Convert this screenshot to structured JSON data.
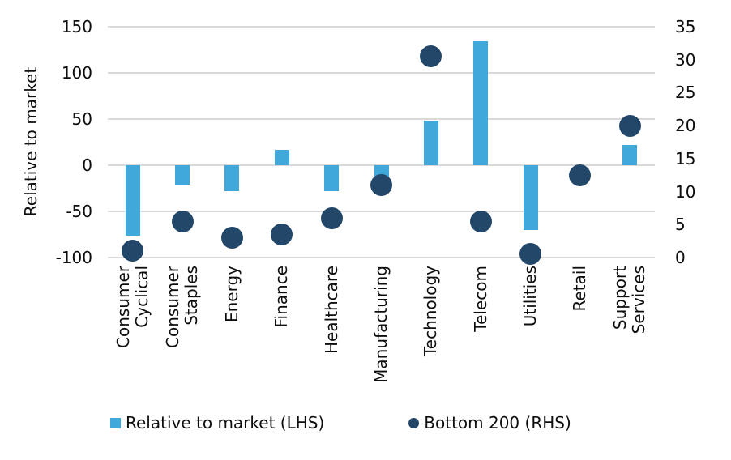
{
  "chart_data": {
    "type": "combo",
    "title": "",
    "categories": [
      "Consumer\nCyclical",
      "Consumer\nStaples",
      "Energy",
      "Finance",
      "Healthcare",
      "Manufacturing",
      "Technology",
      "Telecom",
      "Utilities",
      "Retail",
      "Support\nServices"
    ],
    "series": [
      {
        "name": "Relative to market (LHS)",
        "type": "bar",
        "axis": "left",
        "color": "#41A8DC",
        "values": [
          -76,
          -21,
          -28,
          17,
          -28,
          -14,
          48,
          134,
          -70,
          0,
          22
        ]
      },
      {
        "name": "Bottom 200 (RHS)",
        "type": "scatter",
        "axis": "right",
        "color": "#224769",
        "values": [
          1,
          5.5,
          3,
          3.5,
          6,
          11,
          30.5,
          5.5,
          0.5,
          12.5,
          20
        ]
      }
    ],
    "left_axis": {
      "label": "Relative to market",
      "min": -100,
      "max": 150,
      "step": 50,
      "ticks": [
        150,
        100,
        50,
        0,
        -50,
        -100
      ]
    },
    "right_axis": {
      "label": "",
      "min": 0,
      "max": 35,
      "step": 5,
      "ticks": [
        35,
        30,
        25,
        20,
        15,
        10,
        5,
        0
      ]
    },
    "grid": "horizontal",
    "gridline_color": "#D9D9D9",
    "legend_position": "bottom"
  }
}
